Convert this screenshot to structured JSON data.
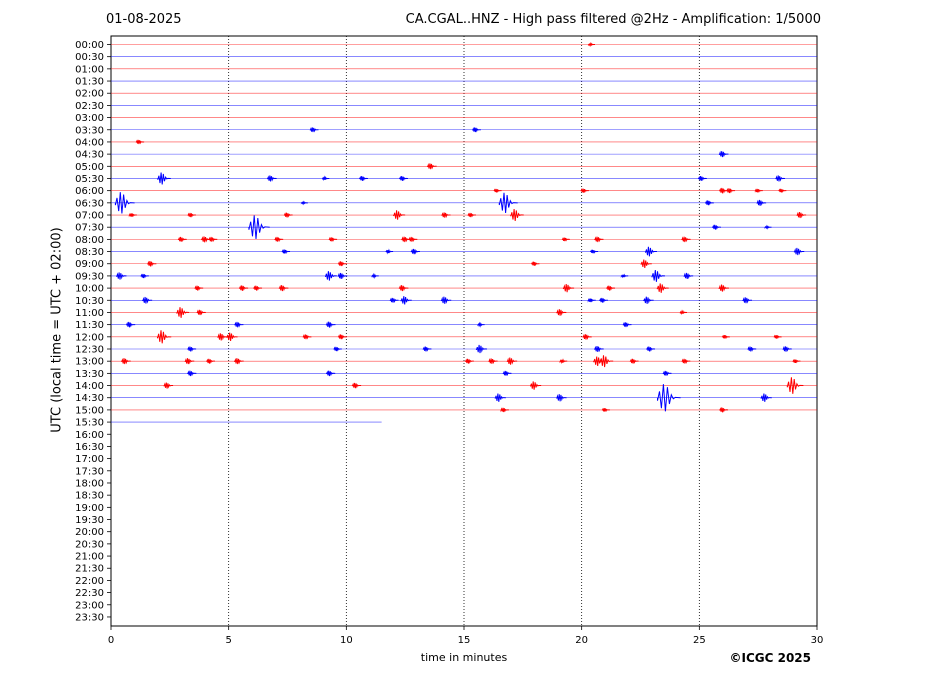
{
  "header": {
    "date": "01-08-2025",
    "title": "CA.CGAL..HNZ - High pass filtered @2Hz - Amplification: 1/5000"
  },
  "footer": {
    "copyright": "©ICGC 2025"
  },
  "colors": {
    "red_trace": "#ff0000",
    "blue_trace": "#0000ff",
    "grid": "#000000"
  },
  "chart_data": {
    "type": "line",
    "title": "CA.CGAL..HNZ - High pass filtered @2Hz - Amplification: 1/5000",
    "xlabel": "time in minutes",
    "ylabel": "UTC (local time = UTC + 02:00)",
    "xlim": [
      0,
      30
    ],
    "xticks": [
      0,
      5,
      10,
      15,
      20,
      25,
      30
    ],
    "grid": "vertical dotted lines at 5, 10, 15, 20, 25 minutes",
    "rows": [
      "00:00",
      "00:30",
      "01:00",
      "01:30",
      "02:00",
      "02:30",
      "03:00",
      "03:30",
      "04:00",
      "04:30",
      "05:00",
      "05:30",
      "06:00",
      "06:30",
      "07:00",
      "07:30",
      "08:00",
      "08:30",
      "09:00",
      "09:30",
      "10:00",
      "10:30",
      "11:00",
      "11:30",
      "12:00",
      "12:30",
      "13:00",
      "13:30",
      "14:00",
      "14:30",
      "15:00",
      "15:30",
      "16:00",
      "16:30",
      "17:00",
      "17:30",
      "18:00",
      "18:30",
      "19:00",
      "19:30",
      "20:00",
      "20:30",
      "21:00",
      "21:30",
      "22:00",
      "22:30",
      "23:00",
      "23:30"
    ],
    "row_colors": "alternating red (even rows) and blue (odd rows)",
    "last_trace": {
      "row": "15:30",
      "end_minute": 11.5
    },
    "events": [
      {
        "row": "00:00",
        "t": 20.4,
        "amp": 0.15
      },
      {
        "row": "03:30",
        "t": 8.6,
        "amp": 0.4
      },
      {
        "row": "03:30",
        "t": 15.5,
        "amp": 0.4
      },
      {
        "row": "04:00",
        "t": 1.2,
        "amp": 0.35
      },
      {
        "row": "04:30",
        "t": 26.0,
        "amp": 0.5
      },
      {
        "row": "05:00",
        "t": 13.6,
        "amp": 0.5
      },
      {
        "row": "05:30",
        "t": 2.2,
        "amp": 1.0
      },
      {
        "row": "05:30",
        "t": 6.8,
        "amp": 0.5
      },
      {
        "row": "05:30",
        "t": 9.1,
        "amp": 0.2
      },
      {
        "row": "05:30",
        "t": 10.7,
        "amp": 0.4
      },
      {
        "row": "05:30",
        "t": 12.4,
        "amp": 0.4
      },
      {
        "row": "05:30",
        "t": 25.1,
        "amp": 0.4
      },
      {
        "row": "05:30",
        "t": 28.4,
        "amp": 0.5
      },
      {
        "row": "06:00",
        "t": 16.4,
        "amp": 0.3
      },
      {
        "row": "06:00",
        "t": 20.1,
        "amp": 0.35
      },
      {
        "row": "06:00",
        "t": 26.0,
        "amp": 0.45
      },
      {
        "row": "06:00",
        "t": 26.3,
        "amp": 0.4
      },
      {
        "row": "06:00",
        "t": 27.5,
        "amp": 0.3
      },
      {
        "row": "06:00",
        "t": 28.5,
        "amp": 0.3
      },
      {
        "row": "06:30",
        "t": 0.5,
        "amp": 1.8
      },
      {
        "row": "06:30",
        "t": 8.2,
        "amp": 0.15
      },
      {
        "row": "06:30",
        "t": 16.8,
        "amp": 1.7
      },
      {
        "row": "06:30",
        "t": 25.4,
        "amp": 0.4
      },
      {
        "row": "06:30",
        "t": 27.6,
        "amp": 0.5
      },
      {
        "row": "07:00",
        "t": 0.9,
        "amp": 0.3
      },
      {
        "row": "07:00",
        "t": 3.4,
        "amp": 0.35
      },
      {
        "row": "07:00",
        "t": 7.5,
        "amp": 0.4
      },
      {
        "row": "07:00",
        "t": 12.2,
        "amp": 0.8
      },
      {
        "row": "07:00",
        "t": 14.2,
        "amp": 0.45
      },
      {
        "row": "07:00",
        "t": 15.3,
        "amp": 0.35
      },
      {
        "row": "07:00",
        "t": 17.2,
        "amp": 1.0
      },
      {
        "row": "07:00",
        "t": 29.3,
        "amp": 0.5
      },
      {
        "row": "07:30",
        "t": 6.2,
        "amp": 2.0
      },
      {
        "row": "07:30",
        "t": 25.7,
        "amp": 0.4
      },
      {
        "row": "07:30",
        "t": 27.9,
        "amp": 0.15
      },
      {
        "row": "08:00",
        "t": 3.0,
        "amp": 0.4
      },
      {
        "row": "08:00",
        "t": 4.0,
        "amp": 0.5
      },
      {
        "row": "08:00",
        "t": 4.3,
        "amp": 0.4
      },
      {
        "row": "08:00",
        "t": 7.1,
        "amp": 0.4
      },
      {
        "row": "08:00",
        "t": 9.4,
        "amp": 0.35
      },
      {
        "row": "08:00",
        "t": 12.5,
        "amp": 0.45
      },
      {
        "row": "08:00",
        "t": 12.8,
        "amp": 0.4
      },
      {
        "row": "08:00",
        "t": 19.3,
        "amp": 0.3
      },
      {
        "row": "08:00",
        "t": 20.7,
        "amp": 0.45
      },
      {
        "row": "08:00",
        "t": 24.4,
        "amp": 0.45
      },
      {
        "row": "08:30",
        "t": 7.4,
        "amp": 0.35
      },
      {
        "row": "08:30",
        "t": 11.8,
        "amp": 0.25
      },
      {
        "row": "08:30",
        "t": 12.9,
        "amp": 0.45
      },
      {
        "row": "08:30",
        "t": 20.5,
        "amp": 0.3
      },
      {
        "row": "08:30",
        "t": 22.9,
        "amp": 0.8
      },
      {
        "row": "08:30",
        "t": 29.2,
        "amp": 0.6
      },
      {
        "row": "09:00",
        "t": 1.7,
        "amp": 0.45
      },
      {
        "row": "09:00",
        "t": 9.8,
        "amp": 0.4
      },
      {
        "row": "09:00",
        "t": 18.0,
        "amp": 0.35
      },
      {
        "row": "09:00",
        "t": 22.7,
        "amp": 0.7
      },
      {
        "row": "09:30",
        "t": 0.4,
        "amp": 0.6
      },
      {
        "row": "09:30",
        "t": 1.4,
        "amp": 0.35
      },
      {
        "row": "09:30",
        "t": 9.3,
        "amp": 0.8
      },
      {
        "row": "09:30",
        "t": 9.8,
        "amp": 0.5
      },
      {
        "row": "09:30",
        "t": 11.2,
        "amp": 0.2
      },
      {
        "row": "09:30",
        "t": 21.8,
        "amp": 0.2
      },
      {
        "row": "09:30",
        "t": 23.2,
        "amp": 1.0
      },
      {
        "row": "09:30",
        "t": 24.5,
        "amp": 0.5
      },
      {
        "row": "10:00",
        "t": 3.7,
        "amp": 0.4
      },
      {
        "row": "10:00",
        "t": 5.6,
        "amp": 0.45
      },
      {
        "row": "10:00",
        "t": 6.2,
        "amp": 0.4
      },
      {
        "row": "10:00",
        "t": 7.3,
        "amp": 0.5
      },
      {
        "row": "10:00",
        "t": 12.4,
        "amp": 0.5
      },
      {
        "row": "10:00",
        "t": 19.4,
        "amp": 0.7
      },
      {
        "row": "10:00",
        "t": 21.2,
        "amp": 0.4
      },
      {
        "row": "10:00",
        "t": 23.4,
        "amp": 0.8
      },
      {
        "row": "10:00",
        "t": 26.0,
        "amp": 0.6
      },
      {
        "row": "10:30",
        "t": 1.5,
        "amp": 0.55
      },
      {
        "row": "10:30",
        "t": 12.0,
        "amp": 0.4
      },
      {
        "row": "10:30",
        "t": 12.5,
        "amp": 0.7
      },
      {
        "row": "10:30",
        "t": 14.2,
        "amp": 0.6
      },
      {
        "row": "10:30",
        "t": 20.4,
        "amp": 0.3
      },
      {
        "row": "10:30",
        "t": 20.9,
        "amp": 0.4
      },
      {
        "row": "10:30",
        "t": 22.8,
        "amp": 0.6
      },
      {
        "row": "10:30",
        "t": 27.0,
        "amp": 0.5
      },
      {
        "row": "11:00",
        "t": 3.0,
        "amp": 0.9
      },
      {
        "row": "11:00",
        "t": 3.8,
        "amp": 0.45
      },
      {
        "row": "11:00",
        "t": 19.1,
        "amp": 0.55
      },
      {
        "row": "11:00",
        "t": 24.3,
        "amp": 0.2
      },
      {
        "row": "11:30",
        "t": 0.8,
        "amp": 0.45
      },
      {
        "row": "11:30",
        "t": 5.4,
        "amp": 0.45
      },
      {
        "row": "11:30",
        "t": 9.3,
        "amp": 0.5
      },
      {
        "row": "11:30",
        "t": 15.7,
        "amp": 0.2
      },
      {
        "row": "11:30",
        "t": 21.9,
        "amp": 0.4
      },
      {
        "row": "12:00",
        "t": 2.2,
        "amp": 1.1
      },
      {
        "row": "12:00",
        "t": 4.7,
        "amp": 0.6
      },
      {
        "row": "12:00",
        "t": 5.1,
        "amp": 0.7
      },
      {
        "row": "12:00",
        "t": 8.3,
        "amp": 0.4
      },
      {
        "row": "12:00",
        "t": 9.8,
        "amp": 0.4
      },
      {
        "row": "12:00",
        "t": 20.2,
        "amp": 0.45
      },
      {
        "row": "12:00",
        "t": 26.1,
        "amp": 0.3
      },
      {
        "row": "12:00",
        "t": 28.3,
        "amp": 0.3
      },
      {
        "row": "12:30",
        "t": 3.4,
        "amp": 0.4
      },
      {
        "row": "12:30",
        "t": 9.6,
        "amp": 0.35
      },
      {
        "row": "12:30",
        "t": 13.4,
        "amp": 0.4
      },
      {
        "row": "12:30",
        "t": 15.7,
        "amp": 0.7
      },
      {
        "row": "12:30",
        "t": 20.7,
        "amp": 0.5
      },
      {
        "row": "12:30",
        "t": 22.9,
        "amp": 0.4
      },
      {
        "row": "12:30",
        "t": 27.2,
        "amp": 0.4
      },
      {
        "row": "12:30",
        "t": 28.7,
        "amp": 0.45
      },
      {
        "row": "13:00",
        "t": 0.6,
        "amp": 0.5
      },
      {
        "row": "13:00",
        "t": 3.3,
        "amp": 0.5
      },
      {
        "row": "13:00",
        "t": 4.2,
        "amp": 0.4
      },
      {
        "row": "13:00",
        "t": 5.4,
        "amp": 0.5
      },
      {
        "row": "13:00",
        "t": 15.2,
        "amp": 0.4
      },
      {
        "row": "13:00",
        "t": 16.2,
        "amp": 0.45
      },
      {
        "row": "13:00",
        "t": 17.0,
        "amp": 0.6
      },
      {
        "row": "13:00",
        "t": 19.2,
        "amp": 0.25
      },
      {
        "row": "13:00",
        "t": 20.7,
        "amp": 0.8
      },
      {
        "row": "13:00",
        "t": 21.0,
        "amp": 1.0
      },
      {
        "row": "13:00",
        "t": 22.2,
        "amp": 0.4
      },
      {
        "row": "13:00",
        "t": 24.4,
        "amp": 0.4
      },
      {
        "row": "13:00",
        "t": 29.1,
        "amp": 0.3
      },
      {
        "row": "13:30",
        "t": 3.4,
        "amp": 0.45
      },
      {
        "row": "13:30",
        "t": 9.3,
        "amp": 0.45
      },
      {
        "row": "13:30",
        "t": 16.8,
        "amp": 0.4
      },
      {
        "row": "13:30",
        "t": 23.6,
        "amp": 0.4
      },
      {
        "row": "14:00",
        "t": 2.4,
        "amp": 0.5
      },
      {
        "row": "14:00",
        "t": 10.4,
        "amp": 0.45
      },
      {
        "row": "14:00",
        "t": 18.0,
        "amp": 0.7
      },
      {
        "row": "14:00",
        "t": 29.0,
        "amp": 1.4
      },
      {
        "row": "14:30",
        "t": 16.5,
        "amp": 0.7
      },
      {
        "row": "14:30",
        "t": 19.1,
        "amp": 0.6
      },
      {
        "row": "14:30",
        "t": 23.6,
        "amp": 2.3
      },
      {
        "row": "14:30",
        "t": 27.8,
        "amp": 0.7
      },
      {
        "row": "15:00",
        "t": 16.7,
        "amp": 0.35
      },
      {
        "row": "15:00",
        "t": 21.0,
        "amp": 0.3
      },
      {
        "row": "15:00",
        "t": 26.0,
        "amp": 0.4
      }
    ]
  }
}
